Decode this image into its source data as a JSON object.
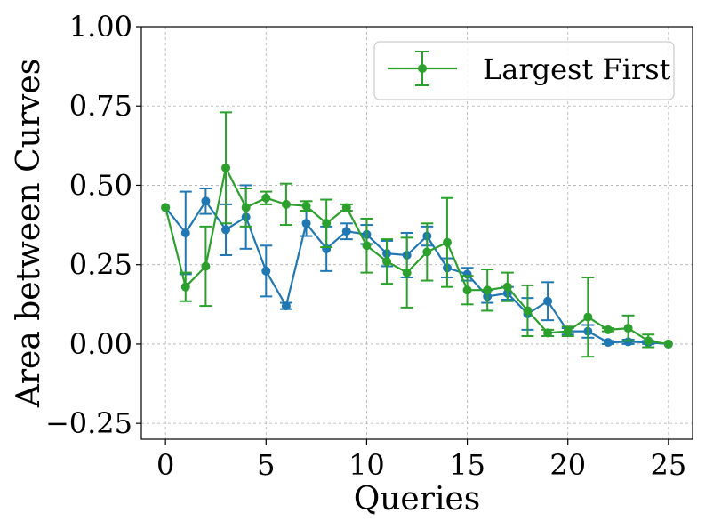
{
  "chart_data": {
    "type": "line",
    "title": "",
    "xlabel": "Queries",
    "ylabel": "Area between Curves",
    "xlim": [
      -1.2,
      26.2
    ],
    "ylim": [
      -0.3,
      1.0
    ],
    "x_ticks": [
      0,
      5,
      10,
      15,
      20,
      25
    ],
    "x_tick_labels": [
      "0",
      "5",
      "10",
      "15",
      "20",
      "25"
    ],
    "y_ticks": [
      -0.25,
      0.0,
      0.25,
      0.5,
      0.75,
      1.0
    ],
    "y_tick_labels": [
      "−0.25",
      "0.00",
      "0.25",
      "0.50",
      "0.75",
      "1.00"
    ],
    "grid": true,
    "legend_position": "top-right",
    "series": [
      {
        "name": "",
        "color": "#1f77b4",
        "x": [
          0,
          1,
          2,
          3,
          4,
          5,
          6,
          7,
          8,
          9,
          10,
          11,
          12,
          13,
          14,
          15,
          16,
          17,
          18,
          19,
          20,
          21,
          22,
          23,
          24,
          25
        ],
        "y": [
          0.43,
          0.35,
          0.45,
          0.36,
          0.4,
          0.23,
          0.12,
          0.38,
          0.3,
          0.355,
          0.345,
          0.285,
          0.28,
          0.34,
          0.24,
          0.22,
          0.15,
          0.16,
          0.095,
          0.135,
          0.04,
          0.04,
          0.005,
          0.007,
          0.005,
          0.0
        ],
        "err": [
          0.0,
          0.13,
          0.04,
          0.08,
          0.1,
          0.08,
          0.01,
          0.04,
          0.07,
          0.025,
          0.03,
          0.04,
          0.07,
          0.03,
          0.03,
          0.02,
          0.02,
          0.02,
          0.05,
          0.06,
          0.01,
          0.02,
          0.005,
          0.007,
          0.005,
          0.0
        ]
      },
      {
        "name": "Largest First",
        "color": "#2ca02c",
        "x": [
          0,
          1,
          2,
          3,
          4,
          5,
          6,
          7,
          8,
          9,
          10,
          11,
          12,
          13,
          14,
          15,
          16,
          17,
          18,
          19,
          20,
          21,
          22,
          23,
          24,
          25
        ],
        "y": [
          0.43,
          0.18,
          0.245,
          0.555,
          0.43,
          0.46,
          0.44,
          0.435,
          0.38,
          0.43,
          0.31,
          0.26,
          0.225,
          0.29,
          0.32,
          0.17,
          0.17,
          0.18,
          0.105,
          0.035,
          0.04,
          0.085,
          0.045,
          0.05,
          0.01,
          0.0
        ],
        "err": [
          0.0,
          0.045,
          0.125,
          0.175,
          0.06,
          0.02,
          0.065,
          0.015,
          0.075,
          0.01,
          0.085,
          0.07,
          0.11,
          0.09,
          0.14,
          0.045,
          0.065,
          0.045,
          0.08,
          0.01,
          0.015,
          0.125,
          0.005,
          0.04,
          0.02,
          0.0
        ]
      }
    ]
  }
}
